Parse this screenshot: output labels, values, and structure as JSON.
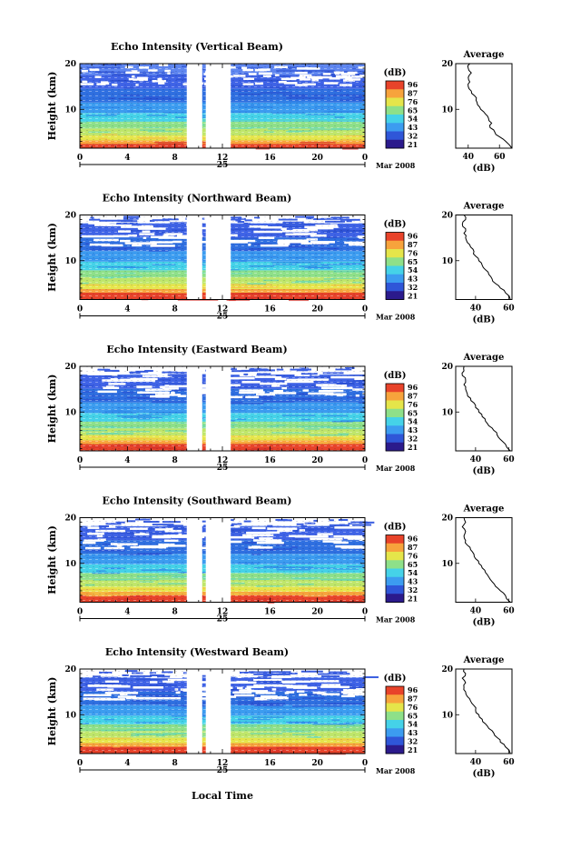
{
  "figure": {
    "bottom_xlabel": "Local Time",
    "date_label": "Mar 2008",
    "day_label": "25",
    "colorbar_unit": "(dB)",
    "avg_title": "Average",
    "avg_xunit": "(dB)"
  },
  "chart_data": [
    {
      "type": "heatmap",
      "title": "Echo Intensity (Vertical Beam)",
      "ylabel": "Height (km)",
      "xlabel": "Local Time",
      "x_ticks": [
        "0",
        "4",
        "8",
        "12",
        "16",
        "20",
        "0"
      ],
      "y_ticks": [
        "20",
        "10"
      ],
      "xlim": [
        0,
        24
      ],
      "ylim": [
        1.5,
        20
      ],
      "data_gaps_hours": [
        [
          9.0,
          10.3
        ],
        [
          10.6,
          12.7
        ]
      ],
      "colorbar": {
        "label": "(dB)",
        "ticks": [
          "96",
          "87",
          "76",
          "65",
          "54",
          "43",
          "32",
          "21"
        ],
        "range": [
          21,
          96
        ]
      },
      "colors": [
        "#2b1a8c",
        "#2f56d8",
        "#3c9cf0",
        "#45d2e8",
        "#8ee089",
        "#e5e54a",
        "#f7a33c",
        "#e8432a"
      ],
      "average_profile": {
        "title": "Average",
        "xlabel": "(dB)",
        "xticks": [
          "40",
          "60"
        ],
        "xlim": [
          32,
          68
        ],
        "yticks": [
          "20",
          "10"
        ],
        "height_km": [
          1.5,
          3,
          4,
          5,
          6,
          7,
          8,
          9,
          10,
          11,
          12,
          13,
          14,
          15,
          16,
          17,
          18,
          19,
          20
        ],
        "db": [
          68,
          64,
          60,
          57,
          54,
          55,
          53,
          51,
          48,
          46,
          45,
          44,
          42,
          40,
          41,
          40,
          42,
          40,
          41
        ]
      }
    },
    {
      "type": "heatmap",
      "title": "Echo Intensity (Northward Beam)",
      "ylabel": "Height (km)",
      "xlabel": "Local Time",
      "x_ticks": [
        "0",
        "4",
        "8",
        "12",
        "16",
        "20",
        "0"
      ],
      "y_ticks": [
        "20",
        "10"
      ],
      "xlim": [
        0,
        24
      ],
      "ylim": [
        1.5,
        20
      ],
      "data_gaps_hours": [
        [
          9.0,
          10.3
        ],
        [
          10.6,
          12.7
        ]
      ],
      "colorbar": {
        "label": "(dB)",
        "ticks": [
          "96",
          "87",
          "76",
          "65",
          "54",
          "43",
          "32",
          "21"
        ],
        "range": [
          21,
          96
        ]
      },
      "colors": [
        "#2b1a8c",
        "#2f56d8",
        "#3c9cf0",
        "#45d2e8",
        "#8ee089",
        "#e5e54a",
        "#f7a33c",
        "#e8432a"
      ],
      "average_profile": {
        "title": "Average",
        "xlabel": "(dB)",
        "xticks": [
          "40",
          "60"
        ],
        "xlim": [
          28,
          62
        ],
        "yticks": [
          "20",
          "10"
        ],
        "height_km": [
          1.5,
          3,
          4,
          5,
          6,
          7,
          8,
          9,
          10,
          11,
          12,
          13,
          14,
          15,
          16,
          17,
          18,
          19,
          20
        ],
        "db": [
          61,
          58,
          55,
          52,
          50,
          48,
          46,
          44,
          42,
          40,
          39,
          37,
          35,
          34,
          33,
          34,
          32,
          34,
          33
        ]
      }
    },
    {
      "type": "heatmap",
      "title": "Echo Intensity (Eastward Beam)",
      "ylabel": "Height (km)",
      "xlabel": "Local Time",
      "x_ticks": [
        "0",
        "4",
        "8",
        "12",
        "16",
        "20",
        "0"
      ],
      "y_ticks": [
        "20",
        "10"
      ],
      "xlim": [
        0,
        24
      ],
      "ylim": [
        1.5,
        20
      ],
      "data_gaps_hours": [
        [
          9.0,
          10.3
        ],
        [
          10.6,
          12.7
        ]
      ],
      "colorbar": {
        "label": "(dB)",
        "ticks": [
          "96",
          "87",
          "76",
          "65",
          "54",
          "43",
          "32",
          "21"
        ],
        "range": [
          21,
          96
        ]
      },
      "colors": [
        "#2b1a8c",
        "#2f56d8",
        "#3c9cf0",
        "#45d2e8",
        "#8ee089",
        "#e5e54a",
        "#f7a33c",
        "#e8432a"
      ],
      "average_profile": {
        "title": "Average",
        "xlabel": "(dB)",
        "xticks": [
          "40",
          "60"
        ],
        "xlim": [
          28,
          62
        ],
        "yticks": [
          "20",
          "10"
        ],
        "height_km": [
          1.5,
          3,
          4,
          5,
          6,
          7,
          8,
          9,
          10,
          11,
          12,
          13,
          14,
          15,
          16,
          17,
          18,
          19,
          20
        ],
        "db": [
          61,
          58,
          55,
          53,
          51,
          48,
          46,
          44,
          42,
          40,
          39,
          37,
          35,
          34,
          33,
          34,
          32,
          33,
          33
        ]
      }
    },
    {
      "type": "heatmap",
      "title": "Echo Intensity (Southward Beam)",
      "ylabel": "Height (km)",
      "xlabel": "Local Time",
      "x_ticks": [
        "0",
        "4",
        "8",
        "12",
        "16",
        "20",
        "0"
      ],
      "y_ticks": [
        "20",
        "10"
      ],
      "xlim": [
        0,
        24
      ],
      "ylim": [
        1.5,
        20
      ],
      "data_gaps_hours": [
        [
          9.0,
          10.3
        ],
        [
          10.6,
          12.7
        ]
      ],
      "colorbar": {
        "label": "(dB)",
        "ticks": [
          "96",
          "87",
          "76",
          "65",
          "54",
          "43",
          "32",
          "21"
        ],
        "range": [
          21,
          96
        ]
      },
      "colors": [
        "#2b1a8c",
        "#2f56d8",
        "#3c9cf0",
        "#45d2e8",
        "#8ee089",
        "#e5e54a",
        "#f7a33c",
        "#e8432a"
      ],
      "average_profile": {
        "title": "Average",
        "xlabel": "(dB)",
        "xticks": [
          "40",
          "60"
        ],
        "xlim": [
          28,
          62
        ],
        "yticks": [
          "20",
          "10"
        ],
        "height_km": [
          1.5,
          3,
          4,
          5,
          6,
          7,
          8,
          9,
          10,
          11,
          12,
          13,
          14,
          15,
          16,
          17,
          18,
          19,
          20
        ],
        "db": [
          61,
          58,
          55,
          52,
          50,
          48,
          46,
          44,
          42,
          40,
          39,
          37,
          35,
          34,
          33,
          34,
          32,
          34,
          33
        ]
      }
    },
    {
      "type": "heatmap",
      "title": "Echo Intensity (Westward Beam)",
      "ylabel": "Height (km)",
      "xlabel": "Local Time",
      "x_ticks": [
        "0",
        "4",
        "8",
        "12",
        "16",
        "20",
        "0"
      ],
      "y_ticks": [
        "20",
        "10"
      ],
      "xlim": [
        0,
        24
      ],
      "ylim": [
        1.5,
        20
      ],
      "data_gaps_hours": [
        [
          9.0,
          10.3
        ],
        [
          10.6,
          12.7
        ]
      ],
      "colorbar": {
        "label": "(dB)",
        "ticks": [
          "96",
          "87",
          "76",
          "65",
          "54",
          "43",
          "32",
          "21"
        ],
        "range": [
          21,
          96
        ]
      },
      "colors": [
        "#2b1a8c",
        "#2f56d8",
        "#3c9cf0",
        "#45d2e8",
        "#8ee089",
        "#e5e54a",
        "#f7a33c",
        "#e8432a"
      ],
      "average_profile": {
        "title": "Average",
        "xlabel": "(dB)",
        "xticks": [
          "40",
          "60"
        ],
        "xlim": [
          28,
          62
        ],
        "yticks": [
          "20",
          "10"
        ],
        "height_km": [
          1.5,
          3,
          4,
          5,
          6,
          7,
          8,
          9,
          10,
          11,
          12,
          13,
          14,
          15,
          16,
          17,
          18,
          19,
          20
        ],
        "db": [
          61,
          58,
          55,
          53,
          51,
          48,
          46,
          44,
          42,
          40,
          39,
          37,
          35,
          34,
          33,
          34,
          32,
          34,
          33
        ]
      }
    }
  ]
}
